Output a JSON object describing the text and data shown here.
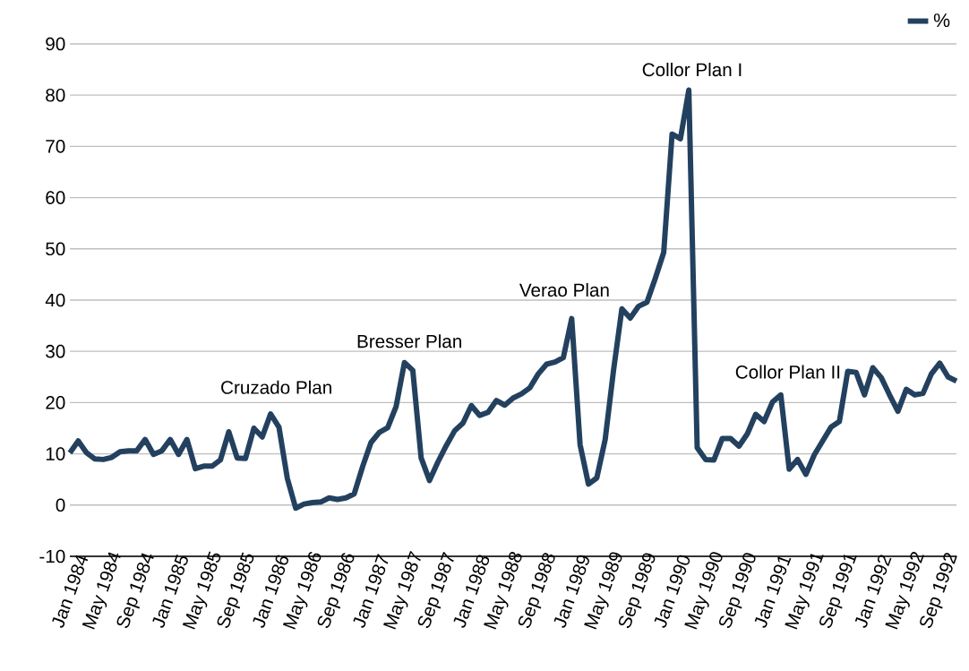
{
  "chart_data": {
    "type": "line",
    "categories": [
      "Jan 1984",
      null,
      null,
      null,
      "May 1984",
      null,
      null,
      null,
      "Sep 1984",
      null,
      null,
      null,
      "Jan 1985",
      null,
      null,
      null,
      "May 1985",
      null,
      null,
      null,
      "Sep 1985",
      null,
      null,
      null,
      "Jan 1986",
      null,
      null,
      null,
      "May 1986",
      null,
      null,
      null,
      "Sep 1986",
      null,
      null,
      null,
      "Jan 1987",
      null,
      null,
      null,
      "May 1987",
      null,
      null,
      null,
      "Sep 1987",
      null,
      null,
      null,
      "Jan 1988",
      null,
      null,
      null,
      "May 1988",
      null,
      null,
      null,
      "Sep 1988",
      null,
      null,
      null,
      "Jan 1989",
      null,
      null,
      null,
      "May 1989",
      null,
      null,
      null,
      "Sep 1989",
      null,
      null,
      null,
      "Jan 1990",
      null,
      null,
      null,
      "May 1990",
      null,
      null,
      null,
      "Sep 1990",
      null,
      null,
      null,
      "Jan 1991",
      null,
      null,
      null,
      "May 1991",
      null,
      null,
      null,
      "Sep 1991",
      null,
      null,
      null,
      "Jan 1992",
      null,
      null,
      null,
      "May 1992",
      null,
      null,
      null,
      "Sep 1992",
      null,
      null
    ],
    "series": [
      {
        "name": "%",
        "color": "#23415f",
        "values": [
          10.2,
          12.5,
          10.2,
          9,
          8.9,
          9.3,
          10.4,
          10.6,
          10.6,
          12.8,
          9.9,
          10.6,
          12.8,
          9.9,
          12.8,
          7.1,
          7.6,
          7.6,
          8.8,
          14.3,
          9.2,
          9.1,
          15,
          13.3,
          17.8,
          15.2,
          5.2,
          -0.6,
          0.2,
          0.5,
          0.6,
          1.4,
          1.1,
          1.4,
          2.2,
          7.5,
          12.2,
          14.2,
          15.1,
          19.2,
          27.8,
          26.3,
          9.2,
          4.8,
          8.4,
          11.6,
          14.5,
          16,
          19.4,
          17.5,
          18.1,
          20.4,
          19.5,
          20.9,
          21.7,
          22.9,
          25.6,
          27.5,
          27.9,
          28.8,
          36.4,
          11.8,
          4.1,
          5.3,
          12.8,
          26.3,
          38.3,
          36.5,
          38.8,
          39.6,
          44.3,
          49.3,
          72.4,
          71.5,
          81,
          11.2,
          8.9,
          8.8,
          13,
          13,
          11.5,
          13.9,
          17.7,
          16.3,
          20.1,
          21.5,
          7,
          8.9,
          6,
          9.8,
          12.5,
          15.2,
          16.3,
          26.1,
          25.9,
          21.5,
          26.8,
          24.9,
          21.5,
          18.3,
          22.6,
          21.5,
          21.8,
          25.6,
          27.7,
          25,
          24.2
        ]
      }
    ],
    "ylim": [
      -10,
      90
    ],
    "yticks": [
      -10,
      0,
      10,
      20,
      30,
      40,
      50,
      60,
      70,
      80,
      90
    ],
    "grid": "y",
    "legend": "top right",
    "annotations": [
      "Cruzado Plan",
      "Bresser Plan",
      "Verao Plan",
      "Collor Plan I",
      "Collor Plan II"
    ]
  }
}
